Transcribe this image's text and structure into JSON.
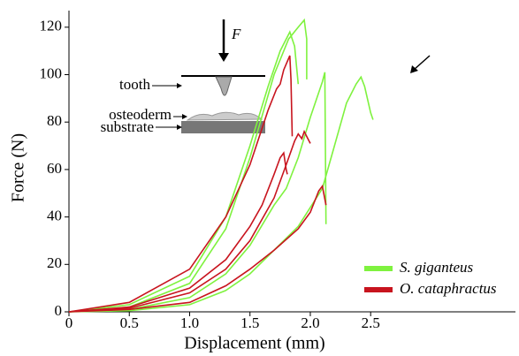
{
  "chart_data": {
    "type": "line",
    "xlabel": "Displacement (mm)",
    "ylabel": "Force (N)",
    "xlim": [
      0,
      3.7
    ],
    "xticks": [
      0,
      0.5,
      {
        "value": 1,
        "label": "1.0"
      },
      1.5,
      {
        "value": 2,
        "label": "2.0"
      },
      2.5
    ],
    "ylim": [
      0,
      127
    ],
    "yticks": [
      0,
      20,
      40,
      60,
      80,
      100,
      120
    ],
    "legend": "lower right",
    "annotations": [
      "F",
      "tooth",
      "osteoderm",
      "substrate"
    ],
    "series": [
      {
        "name": "S. giganteus",
        "color": "#7ff23f",
        "curves": [
          {
            "x": [
              0,
              0.5,
              1.0,
              1.3,
              1.5,
              1.65,
              1.75,
              1.83,
              1.87,
              1.9
            ],
            "values": [
              0,
              3,
              15,
              40,
              70,
              95,
              110,
              118,
              112,
              96
            ]
          },
          {
            "x": [
              0,
              0.5,
              1.0,
              1.3,
              1.5,
              1.7,
              1.82,
              1.9,
              1.95,
              1.97,
              1.97
            ],
            "values": [
              0,
              2,
              12,
              35,
              65,
              100,
              115,
              120,
              123,
              115,
              98
            ]
          },
          {
            "x": [
              0,
              0.5,
              1.0,
              1.3,
              1.5,
              1.7,
              1.8,
              1.9,
              2.0,
              2.1,
              2.12,
              2.13
            ],
            "values": [
              0,
              1,
              6,
              16,
              28,
              45,
              52,
              65,
              82,
              97,
              101,
              37
            ]
          },
          {
            "x": [
              0,
              0.5,
              1.0,
              1.3,
              1.5,
              1.7,
              1.9,
              2.1,
              2.2,
              2.3,
              2.38,
              2.42,
              2.45,
              2.5,
              2.52
            ],
            "values": [
              0,
              0.5,
              3,
              9,
              16,
              26,
              36,
              52,
              70,
              88,
              96,
              99,
              95,
              84,
              81
            ]
          }
        ]
      },
      {
        "name": "O. cataphractus",
        "color": "#c8141e",
        "curves": [
          {
            "x": [
              0,
              0.5,
              1.0,
              1.3,
              1.5,
              1.65,
              1.72,
              1.75,
              1.78,
              1.83,
              1.84,
              1.85
            ],
            "values": [
              0,
              4,
              18,
              40,
              62,
              85,
              94,
              96,
              102,
              108,
              98,
              74
            ]
          },
          {
            "x": [
              0,
              0.5,
              1.0,
              1.3,
              1.5,
              1.6,
              1.7,
              1.75,
              1.78,
              1.8,
              1.81
            ],
            "values": [
              0,
              2,
              10,
              22,
              36,
              45,
              58,
              65,
              67,
              60,
              58
            ]
          },
          {
            "x": [
              0,
              0.5,
              1.0,
              1.3,
              1.5,
              1.7,
              1.8,
              1.87,
              1.9,
              1.93,
              1.95,
              1.98,
              2.0
            ],
            "values": [
              0,
              1.5,
              8,
              18,
              30,
              48,
              62,
              72,
              75,
              73,
              76,
              73,
              71
            ]
          },
          {
            "x": [
              0,
              0.5,
              1.0,
              1.3,
              1.5,
              1.7,
              1.9,
              2.0,
              2.07,
              2.1,
              2.13
            ],
            "values": [
              0,
              1,
              4,
              11,
              18,
              26,
              35,
              42,
              51,
              53,
              45
            ]
          }
        ]
      }
    ]
  }
}
